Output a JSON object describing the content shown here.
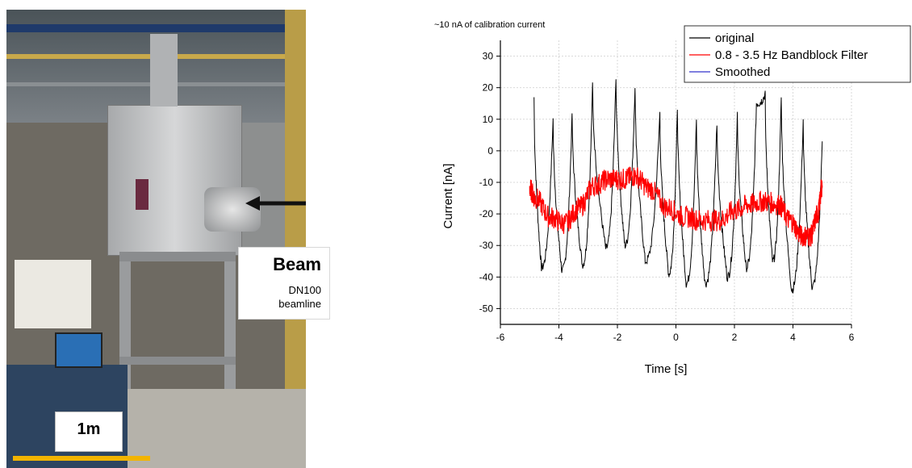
{
  "photo": {
    "beam_label": "Beam",
    "beam_line1": "DN100",
    "beam_line2": "beamline",
    "scale_label": "1m",
    "colors": {
      "scale_bar": "#f2b400",
      "arrow": "#111111"
    }
  },
  "chart_data": {
    "type": "line",
    "title": "~10 nA of calibration current",
    "xlabel": "Time [s]",
    "ylabel": "Current [nA]",
    "xlim": [
      -6,
      6
    ],
    "ylim": [
      -55,
      35
    ],
    "xticks": [
      -6,
      -4,
      -2,
      0,
      2,
      4,
      6
    ],
    "yticks": [
      -50,
      -40,
      -30,
      -20,
      -10,
      0,
      10,
      20,
      30
    ],
    "grid": true,
    "legend_position": "top-right",
    "series": [
      {
        "name": "original",
        "color": "#000000",
        "peaks": [
          {
            "t": -4.85,
            "v": 17
          },
          {
            "t": -4.2,
            "v": 10
          },
          {
            "t": -3.55,
            "v": 12
          },
          {
            "t": -2.85,
            "v": 21
          },
          {
            "t": -2.05,
            "v": 24
          },
          {
            "t": -1.4,
            "v": 21
          },
          {
            "t": -0.55,
            "v": 12
          },
          {
            "t": 0.05,
            "v": 14
          },
          {
            "t": 0.7,
            "v": 10
          },
          {
            "t": 1.4,
            "v": 9
          },
          {
            "t": 2.1,
            "v": 11
          },
          {
            "t": 2.75,
            "v": 15
          },
          {
            "t": 3.05,
            "v": 18
          },
          {
            "t": 3.6,
            "v": 17
          },
          {
            "t": 4.35,
            "v": 10
          },
          {
            "t": 5.0,
            "v": 3
          }
        ],
        "troughs": [
          {
            "t": -4.6,
            "v": -37
          },
          {
            "t": -3.9,
            "v": -38
          },
          {
            "t": -3.2,
            "v": -36
          },
          {
            "t": -2.4,
            "v": -31
          },
          {
            "t": -1.75,
            "v": -30
          },
          {
            "t": -1.05,
            "v": -35
          },
          {
            "t": -0.25,
            "v": -39
          },
          {
            "t": 0.35,
            "v": -42
          },
          {
            "t": 1.0,
            "v": -42
          },
          {
            "t": 1.75,
            "v": -40
          },
          {
            "t": 2.4,
            "v": -37
          },
          {
            "t": 3.3,
            "v": -35
          },
          {
            "t": 3.95,
            "v": -44
          },
          {
            "t": 4.65,
            "v": -43
          }
        ]
      },
      {
        "name": "0.8 - 3.5 Hz Bandblock Filter",
        "color": "#ff0000",
        "points": [
          {
            "t": -5.0,
            "v": -12
          },
          {
            "t": -4.8,
            "v": -15
          },
          {
            "t": -4.3,
            "v": -21
          },
          {
            "t": -3.8,
            "v": -23
          },
          {
            "t": -3.3,
            "v": -18
          },
          {
            "t": -2.8,
            "v": -11
          },
          {
            "t": -2.3,
            "v": -9
          },
          {
            "t": -1.8,
            "v": -9
          },
          {
            "t": -1.4,
            "v": -8
          },
          {
            "t": -0.9,
            "v": -12
          },
          {
            "t": -0.3,
            "v": -18
          },
          {
            "t": 0.3,
            "v": -21
          },
          {
            "t": 0.9,
            "v": -22
          },
          {
            "t": 1.5,
            "v": -22
          },
          {
            "t": 2.0,
            "v": -19
          },
          {
            "t": 2.5,
            "v": -17
          },
          {
            "t": 3.0,
            "v": -16
          },
          {
            "t": 3.5,
            "v": -17
          },
          {
            "t": 3.9,
            "v": -22
          },
          {
            "t": 4.3,
            "v": -27
          },
          {
            "t": 4.6,
            "v": -27
          },
          {
            "t": 4.85,
            "v": -20
          },
          {
            "t": 5.0,
            "v": -11
          }
        ]
      },
      {
        "name": "Smoothed",
        "color": "#3333cc",
        "points": []
      }
    ]
  }
}
